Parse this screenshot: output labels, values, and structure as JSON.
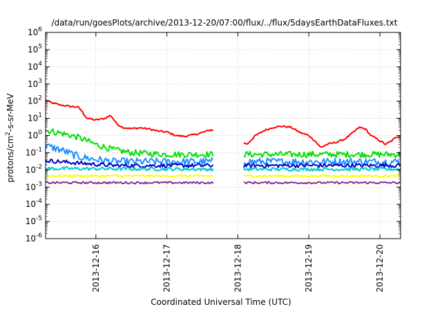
{
  "chart_data": {
    "type": "line",
    "title": "/data/run/goesPlots/archive/2013-12-20/07:00/flux/../flux/5daysEarthDataFluxes.txt",
    "xlabel": "Coordinated Universal Time (UTC)",
    "ylabel": {
      "base": "protons/cm",
      "sup": "2",
      "rest": "-s-sr-MeV"
    },
    "y_scale": "log",
    "ylim": [
      1e-06,
      1000000.0
    ],
    "y_ticks": [
      {
        "base": "10",
        "exp": "-6"
      },
      {
        "base": "10",
        "exp": "-5"
      },
      {
        "base": "10",
        "exp": "-4"
      },
      {
        "base": "10",
        "exp": "-3"
      },
      {
        "base": "10",
        "exp": "-2"
      },
      {
        "base": "10",
        "exp": "-1"
      },
      {
        "base": "10",
        "exp": "0"
      },
      {
        "base": "10",
        "exp": "1"
      },
      {
        "base": "10",
        "exp": "2"
      },
      {
        "base": "10",
        "exp": "3"
      },
      {
        "base": "10",
        "exp": "4"
      },
      {
        "base": "10",
        "exp": "5"
      },
      {
        "base": "10",
        "exp": "6"
      }
    ],
    "xlim": [
      "2013-12-15 07:00",
      "2013-12-20 07:00"
    ],
    "x_ticks": [
      "2013-12-16",
      "2013-12-17",
      "2013-12-18",
      "2013-12-19",
      "2013-12-20"
    ],
    "grid": true,
    "data_gap": [
      "2013-12-17 16:00",
      "2013-12-18 02:00"
    ],
    "series": [
      {
        "color": "#ff0000",
        "noise": 0.05,
        "points": [
          [
            "2013-12-15 07:00",
            120
          ],
          [
            "2013-12-15 09:00",
            80
          ],
          [
            "2013-12-15 12:00",
            60
          ],
          [
            "2013-12-15 15:00",
            50
          ],
          [
            "2013-12-15 18:00",
            45
          ],
          [
            "2013-12-15 19:00",
            30
          ],
          [
            "2013-12-15 21:00",
            10
          ],
          [
            "2013-12-16 00:00",
            8
          ],
          [
            "2013-12-16 03:00",
            10
          ],
          [
            "2013-12-16 05:00",
            15
          ],
          [
            "2013-12-16 07:00",
            5
          ],
          [
            "2013-12-16 09:00",
            3
          ],
          [
            "2013-12-16 12:00",
            2.5
          ],
          [
            "2013-12-16 15:00",
            2.8
          ],
          [
            "2013-12-16 18:00",
            2.4
          ],
          [
            "2013-12-16 21:00",
            1.8
          ],
          [
            "2013-12-17 00:00",
            1.6
          ],
          [
            "2013-12-17 03:00",
            1.0
          ],
          [
            "2013-12-17 06:00",
            0.9
          ],
          [
            "2013-12-17 09:00",
            1.1
          ],
          [
            "2013-12-17 12:00",
            1.5
          ],
          [
            "2013-12-17 15:00",
            2.2
          ],
          [
            "2013-12-18 02:00",
            0.4
          ],
          [
            "2013-12-18 03:00",
            0.3
          ],
          [
            "2013-12-18 06:00",
            1.0
          ],
          [
            "2013-12-18 09:00",
            2.0
          ],
          [
            "2013-12-18 12:00",
            3.0
          ],
          [
            "2013-12-18 15:00",
            3.5
          ],
          [
            "2013-12-18 18:00",
            3.0
          ],
          [
            "2013-12-18 21:00",
            1.5
          ],
          [
            "2013-12-19 00:00",
            1.0
          ],
          [
            "2013-12-19 02:00",
            0.5
          ],
          [
            "2013-12-19 04:00",
            0.2
          ],
          [
            "2013-12-19 06:00",
            0.3
          ],
          [
            "2013-12-19 09:00",
            0.4
          ],
          [
            "2013-12-19 12:00",
            0.6
          ],
          [
            "2013-12-19 15:00",
            1.5
          ],
          [
            "2013-12-19 17:00",
            3.0
          ],
          [
            "2013-12-19 19:00",
            2.5
          ],
          [
            "2013-12-19 21:00",
            1.0
          ],
          [
            "2013-12-20 00:00",
            0.5
          ],
          [
            "2013-12-20 02:00",
            0.3
          ],
          [
            "2013-12-20 04:00",
            0.5
          ],
          [
            "2013-12-20 06:00",
            0.9
          ],
          [
            "2013-12-20 07:00",
            0.8
          ]
        ]
      },
      {
        "color": "#00e000",
        "noise": 0.18,
        "points": [
          [
            "2013-12-15 07:00",
            2.0
          ],
          [
            "2013-12-15 12:00",
            1.4
          ],
          [
            "2013-12-15 18:00",
            0.8
          ],
          [
            "2013-12-16 00:00",
            0.3
          ],
          [
            "2013-12-16 06:00",
            0.15
          ],
          [
            "2013-12-16 12:00",
            0.1
          ],
          [
            "2013-12-17 00:00",
            0.08
          ],
          [
            "2013-12-17 15:00",
            0.08
          ],
          [
            "2013-12-18 02:00",
            0.08
          ],
          [
            "2013-12-19 00:00",
            0.08
          ],
          [
            "2013-12-20 07:00",
            0.08
          ]
        ]
      },
      {
        "color": "#1e90ff",
        "noise": 0.22,
        "points": [
          [
            "2013-12-15 07:00",
            0.25
          ],
          [
            "2013-12-15 12:00",
            0.15
          ],
          [
            "2013-12-15 18:00",
            0.06
          ],
          [
            "2013-12-16 00:00",
            0.04
          ],
          [
            "2013-12-16 06:00",
            0.03
          ],
          [
            "2013-12-17 15:00",
            0.03
          ],
          [
            "2013-12-18 02:00",
            0.03
          ],
          [
            "2013-12-20 07:00",
            0.03
          ]
        ]
      },
      {
        "color": "#0000cd",
        "noise": 0.12,
        "points": [
          [
            "2013-12-15 07:00",
            0.035
          ],
          [
            "2013-12-15 18:00",
            0.025
          ],
          [
            "2013-12-16 06:00",
            0.018
          ],
          [
            "2013-12-17 15:00",
            0.018
          ],
          [
            "2013-12-18 02:00",
            0.018
          ],
          [
            "2013-12-20 07:00",
            0.018
          ]
        ]
      },
      {
        "color": "#00c8c8",
        "noise": 0.1,
        "points": [
          [
            "2013-12-15 07:00",
            0.012
          ],
          [
            "2013-12-17 15:00",
            0.011
          ],
          [
            "2013-12-18 02:00",
            0.011
          ],
          [
            "2013-12-20 07:00",
            0.011
          ]
        ]
      },
      {
        "color": "#ffff00",
        "noise": 0.06,
        "points": [
          [
            "2013-12-15 07:00",
            0.0045
          ],
          [
            "2013-12-17 15:00",
            0.0045
          ],
          [
            "2013-12-18 02:00",
            0.0045
          ],
          [
            "2013-12-20 07:00",
            0.0045
          ]
        ]
      },
      {
        "color": "#8b2e8b",
        "noise": 0.06,
        "points": [
          [
            "2013-12-15 07:00",
            0.0018
          ],
          [
            "2013-12-17 15:00",
            0.0018
          ],
          [
            "2013-12-18 02:00",
            0.0018
          ],
          [
            "2013-12-20 07:00",
            0.0018
          ]
        ]
      }
    ]
  }
}
